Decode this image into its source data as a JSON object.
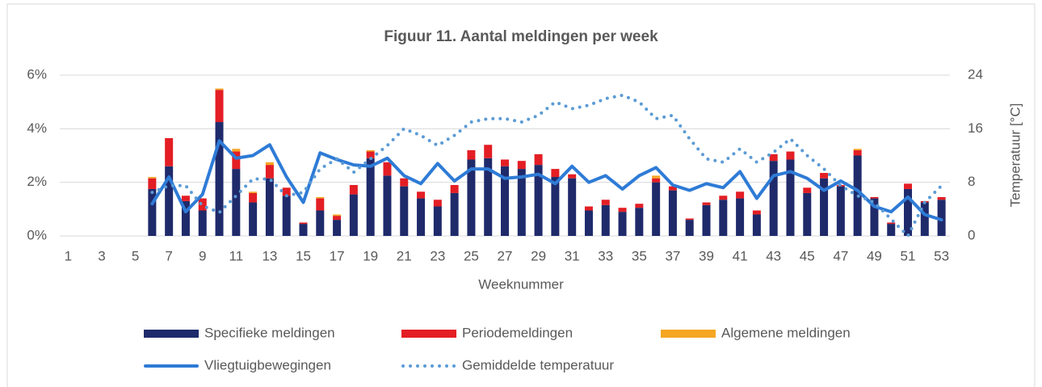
{
  "chart_data": {
    "type": "bar",
    "title": "Figuur 11. Aantal meldingen per week",
    "x_label": "Weeknummer",
    "y2_label": "Temperatuur [°C]",
    "categories": [
      "1",
      null,
      "3",
      null,
      "5",
      null,
      "7",
      null,
      "9",
      null,
      "11",
      null,
      "13",
      null,
      "15",
      null,
      "17",
      null,
      "19",
      null,
      "21",
      null,
      "23",
      null,
      "25",
      null,
      "27",
      null,
      "29",
      null,
      "31",
      null,
      "33",
      null,
      "35",
      null,
      "37",
      null,
      "39",
      null,
      "41",
      null,
      "43",
      null,
      "45",
      null,
      "47",
      null,
      "49",
      null,
      "51",
      null,
      "53"
    ],
    "ylim": [
      0,
      6
    ],
    "yticks": [
      {
        "value": 0,
        "label": "0%"
      },
      {
        "value": 2,
        "label": "2%"
      },
      {
        "value": 4,
        "label": "4%"
      },
      {
        "value": 6,
        "label": "6%"
      }
    ],
    "y2lim": [
      0,
      24
    ],
    "y2ticks": [
      0,
      8,
      16,
      24
    ],
    "grid": true,
    "legend": "bottom",
    "series": [
      {
        "name": "Specifieke meldingen",
        "type": "bar",
        "color": "#1f2a6b",
        "values": [
          null,
          null,
          null,
          null,
          null,
          1.75,
          2.6,
          1.3,
          0.95,
          4.25,
          2.5,
          1.25,
          2.15,
          1.5,
          0.45,
          0.95,
          0.6,
          1.55,
          2.9,
          2.25,
          1.85,
          1.4,
          1.1,
          1.6,
          2.85,
          2.9,
          2.6,
          2.5,
          2.65,
          2.2,
          2.15,
          0.95,
          1.15,
          0.9,
          1.05,
          2.0,
          1.7,
          0.6,
          1.15,
          1.35,
          1.4,
          0.8,
          2.8,
          2.85,
          1.6,
          2.15,
          1.85,
          3.0,
          1.4,
          0.45,
          1.75,
          1.25,
          1.35
        ]
      },
      {
        "name": "Periodemeldingen",
        "type": "bar",
        "color": "#e31e24",
        "values": [
          null,
          null,
          null,
          null,
          null,
          0.4,
          1.05,
          0.2,
          0.45,
          1.2,
          0.65,
          0.35,
          0.5,
          0.3,
          0.05,
          0.45,
          0.15,
          0.35,
          0.25,
          0.5,
          0.3,
          0.25,
          0.25,
          0.3,
          0.35,
          0.5,
          0.25,
          0.3,
          0.4,
          0.3,
          0.15,
          0.15,
          0.2,
          0.15,
          0.15,
          0.15,
          0.15,
          0.05,
          0.1,
          0.15,
          0.25,
          0.15,
          0.25,
          0.3,
          0.2,
          0.2,
          0.05,
          0.2,
          0.05,
          0.05,
          0.2,
          0.05,
          0.1
        ]
      },
      {
        "name": "Algemene meldingen",
        "type": "bar",
        "color": "#f5a623",
        "values": [
          null,
          null,
          null,
          null,
          null,
          0.05,
          0,
          0,
          0,
          0.05,
          0.1,
          0.05,
          0.1,
          0,
          0,
          0.05,
          0.05,
          0,
          0.05,
          0,
          0,
          0,
          0,
          0,
          0,
          0,
          0,
          0,
          0,
          0,
          0,
          0,
          0,
          0,
          0,
          0.1,
          0,
          0,
          0,
          0,
          0,
          0,
          0,
          0,
          0,
          0,
          0,
          0.05,
          0,
          0,
          0,
          0,
          0
        ]
      },
      {
        "name": "Vliegtuigbewegingen",
        "type": "line",
        "color": "#2e7bd6",
        "values": [
          null,
          null,
          null,
          null,
          null,
          1.2,
          2.2,
          0.9,
          1.55,
          3.55,
          2.9,
          3.0,
          3.4,
          2.2,
          1.25,
          3.1,
          2.85,
          2.65,
          2.6,
          2.9,
          2.25,
          1.95,
          2.7,
          2.05,
          2.5,
          2.5,
          2.15,
          2.2,
          2.3,
          1.95,
          2.6,
          2.0,
          2.25,
          1.75,
          2.25,
          2.55,
          1.9,
          1.7,
          1.95,
          1.8,
          2.4,
          1.4,
          2.25,
          2.4,
          2.15,
          1.7,
          2.05,
          1.7,
          1.1,
          0.9,
          1.45,
          0.8,
          0.6
        ]
      },
      {
        "name": "Gemiddelde temperatuur",
        "type": "line",
        "dash": "dotted",
        "axis": "y2",
        "color": "#5b9bd5",
        "values": [
          null,
          null,
          null,
          null,
          null,
          6.5,
          7.5,
          7.5,
          4.5,
          3.5,
          6,
          8.5,
          8.5,
          6,
          6.5,
          10,
          11.5,
          9.5,
          11.5,
          13.5,
          16,
          15,
          13.5,
          15,
          17,
          17.5,
          17.5,
          17,
          18,
          20,
          19,
          19.5,
          20.5,
          21,
          20,
          17.5,
          18,
          14.5,
          11.5,
          11,
          13,
          11,
          12.5,
          14.5,
          12,
          10,
          7.5,
          6,
          5,
          2.5,
          0,
          5,
          7.5
        ]
      }
    ]
  }
}
